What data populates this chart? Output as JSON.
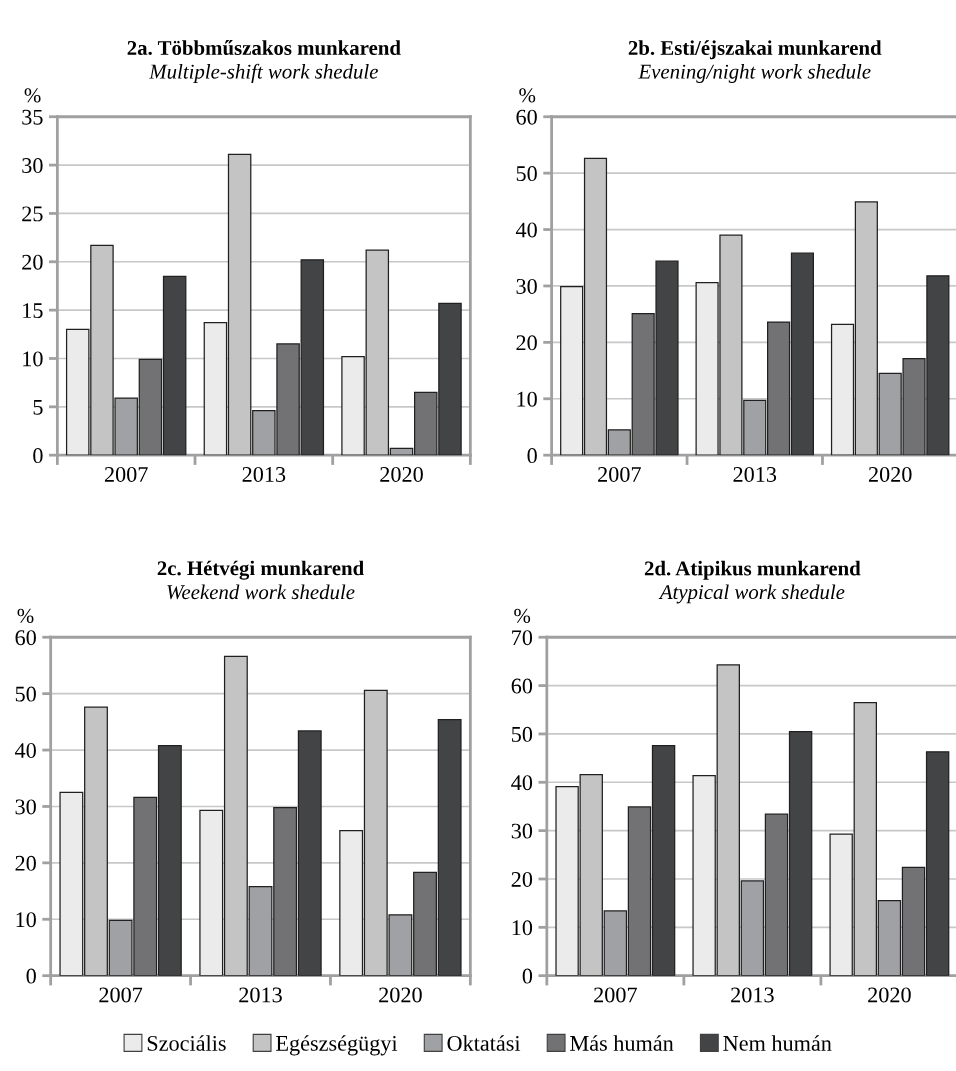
{
  "chart_data": [
    {
      "type": "bar",
      "title": "2a. Többműszakos munkarend",
      "subtitle": "Multiple-shift work shedule",
      "ylabel": "%",
      "categories": [
        "2007",
        "2013",
        "2020"
      ],
      "ylim": [
        0,
        35
      ],
      "yticks": [
        0,
        5,
        10,
        15,
        20,
        25,
        30,
        35
      ],
      "grid": "y",
      "legend": "bottom",
      "series": [
        {
          "name": "Szociális",
          "color": "#ebebeb",
          "values": [
            13.0,
            13.7,
            10.2
          ]
        },
        {
          "name": "Egészségügyi",
          "color": "#c4c4c4",
          "values": [
            21.7,
            31.1,
            21.2
          ]
        },
        {
          "name": "Oktatási",
          "color": "#a0a1a4",
          "values": [
            5.9,
            4.6,
            0.7
          ]
        },
        {
          "name": "Más humán",
          "color": "#727274",
          "values": [
            9.9,
            11.5,
            6.5
          ]
        },
        {
          "name": "Nem humán",
          "color": "#434446",
          "values": [
            18.5,
            20.2,
            15.7
          ]
        }
      ]
    },
    {
      "type": "bar",
      "title": "2b. Esti/éjszakai munkarend",
      "subtitle": "Evening/night work shedule",
      "ylabel": "%",
      "categories": [
        "2007",
        "2013",
        "2020"
      ],
      "ylim": [
        0,
        60
      ],
      "yticks": [
        0,
        10,
        20,
        30,
        40,
        50,
        60
      ],
      "grid": "y",
      "series": [
        {
          "color": "#ebebeb",
          "values": [
            29.9,
            30.6,
            23.2
          ]
        },
        {
          "color": "#c4c4c4",
          "values": [
            52.6,
            39.0,
            44.9
          ]
        },
        {
          "color": "#a0a1a4",
          "values": [
            4.5,
            9.7,
            14.5
          ]
        },
        {
          "color": "#727274",
          "values": [
            25.1,
            23.6,
            17.1
          ]
        },
        {
          "color": "#434446",
          "values": [
            34.4,
            35.8,
            31.8
          ]
        }
      ]
    },
    {
      "type": "bar",
      "title": "2c. Hétvégi munkarend",
      "subtitle": "Weekend work shedule",
      "ylabel": "%",
      "categories": [
        "2007",
        "2013",
        "2020"
      ],
      "ylim": [
        0,
        60
      ],
      "yticks": [
        0,
        10,
        20,
        30,
        40,
        50,
        60
      ],
      "grid": "y",
      "series": [
        {
          "color": "#ebebeb",
          "values": [
            32.5,
            29.3,
            25.7
          ]
        },
        {
          "color": "#c4c4c4",
          "values": [
            47.6,
            56.6,
            50.6
          ]
        },
        {
          "color": "#a0a1a4",
          "values": [
            9.8,
            15.8,
            10.8
          ]
        },
        {
          "color": "#727274",
          "values": [
            31.6,
            29.8,
            18.3
          ]
        },
        {
          "color": "#434446",
          "values": [
            40.8,
            43.4,
            45.4
          ]
        }
      ]
    },
    {
      "type": "bar",
      "title": "2d. Atipikus munkarend",
      "subtitle": "Atypical work shedule",
      "ylabel": "%",
      "categories": [
        "2007",
        "2013",
        "2020"
      ],
      "ylim": [
        0,
        70
      ],
      "yticks": [
        0,
        10,
        20,
        30,
        40,
        50,
        60,
        70
      ],
      "grid": "y",
      "series": [
        {
          "color": "#ebebeb",
          "values": [
            39.1,
            41.4,
            29.3
          ]
        },
        {
          "color": "#c4c4c4",
          "values": [
            41.6,
            64.3,
            56.5
          ]
        },
        {
          "color": "#a0a1a4",
          "values": [
            13.4,
            19.6,
            15.5
          ]
        },
        {
          "color": "#727274",
          "values": [
            34.9,
            33.4,
            22.4
          ]
        },
        {
          "color": "#434446",
          "values": [
            47.6,
            50.5,
            46.3
          ]
        }
      ]
    }
  ]
}
